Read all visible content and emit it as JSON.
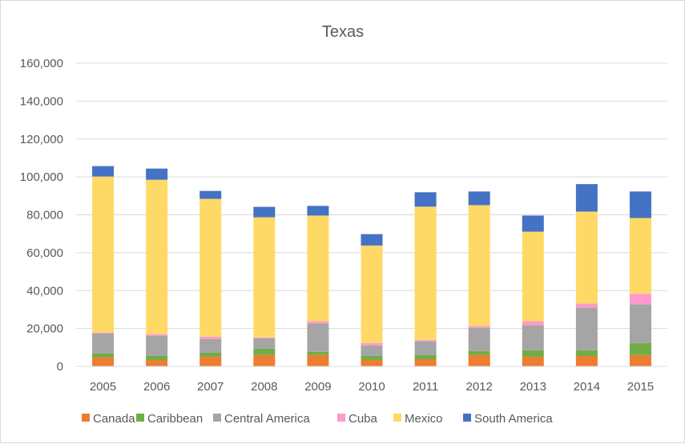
{
  "chart_data": {
    "type": "bar",
    "stacked": true,
    "title": "Texas",
    "xlabel": "",
    "ylabel": "",
    "ylim": [
      0,
      160000
    ],
    "yticks": [
      0,
      20000,
      40000,
      60000,
      80000,
      100000,
      120000,
      140000,
      160000
    ],
    "ytick_labels": [
      "0",
      "20,000",
      "40,000",
      "60,000",
      "80,000",
      "100,000",
      "120,000",
      "140,000",
      "160,000"
    ],
    "grid": true,
    "legend_position": "bottom",
    "categories": [
      "2005",
      "2006",
      "2007",
      "2008",
      "2009",
      "2010",
      "2011",
      "2012",
      "2013",
      "2014",
      "2015"
    ],
    "series": [
      {
        "name": "Canada",
        "color": "#ed7d31",
        "values": [
          4700,
          3400,
          5100,
          6000,
          6000,
          3400,
          3800,
          6000,
          5100,
          5500,
          6000
        ]
      },
      {
        "name": "Caribbean",
        "color": "#70ad47",
        "values": [
          2100,
          2100,
          2100,
          3400,
          1700,
          2100,
          2200,
          2100,
          3400,
          3000,
          6300
        ]
      },
      {
        "name": "Central America",
        "color": "#a5a5a5",
        "values": [
          10600,
          10700,
          7300,
          5500,
          14900,
          5600,
          7200,
          12300,
          13200,
          22600,
          20500
        ]
      },
      {
        "name": "Cuba",
        "color": "#ff99cc",
        "values": [
          500,
          800,
          1200,
          400,
          1200,
          1200,
          800,
          900,
          2100,
          2100,
          5500
        ]
      },
      {
        "name": "Mexico",
        "color": "#ffd966",
        "values": [
          82300,
          81500,
          72700,
          63400,
          55800,
          51500,
          70300,
          63800,
          47300,
          48500,
          40000
        ]
      },
      {
        "name": "South America",
        "color": "#4472c4",
        "values": [
          5500,
          5900,
          4200,
          5500,
          5100,
          6000,
          7600,
          7200,
          8500,
          14500,
          14000
        ]
      }
    ]
  }
}
